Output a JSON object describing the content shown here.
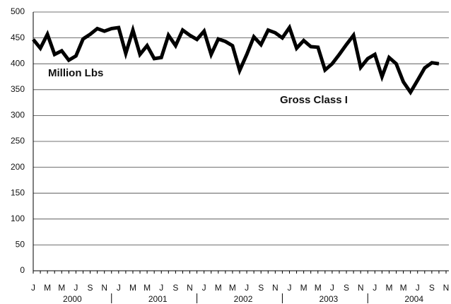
{
  "chart_data": {
    "type": "line",
    "categories": [
      "J",
      null,
      "M",
      null,
      "M",
      null,
      "J",
      null,
      "S",
      null,
      "N",
      null,
      "J",
      null,
      "M",
      null,
      "M",
      null,
      "J",
      null,
      "S",
      null,
      "N",
      null,
      "J",
      null,
      "M",
      null,
      "M",
      null,
      "J",
      null,
      "S",
      null,
      "N",
      null,
      "J",
      null,
      "M",
      null,
      "M",
      null,
      "J",
      null,
      "S",
      null,
      "N",
      null,
      "J",
      null,
      "M",
      null,
      "M",
      null,
      "J",
      null,
      "S",
      null,
      "N"
    ],
    "years": [
      "2000",
      "2001",
      "2002",
      "2003",
      "2004"
    ],
    "series": [
      {
        "name": "Gross Class I",
        "color": "#000000",
        "values": [
          447,
          430,
          457,
          418,
          425,
          407,
          415,
          448,
          457,
          468,
          463,
          468,
          470,
          420,
          465,
          418,
          435,
          410,
          412,
          455,
          435,
          465,
          455,
          447,
          463,
          418,
          448,
          443,
          435,
          387,
          418,
          452,
          437,
          465,
          460,
          450,
          470,
          430,
          445,
          433,
          432,
          388,
          400,
          418,
          437,
          455,
          393,
          410,
          418,
          375,
          412,
          400,
          365,
          345,
          368,
          392,
          402,
          400,
          null
        ]
      }
    ],
    "annotations": [
      "Million Lbs",
      "Gross Class I"
    ],
    "ylim": [
      0,
      500
    ],
    "yticks": [
      0,
      50,
      100,
      150,
      200,
      250,
      300,
      350,
      400,
      450,
      500
    ],
    "grid": true
  }
}
